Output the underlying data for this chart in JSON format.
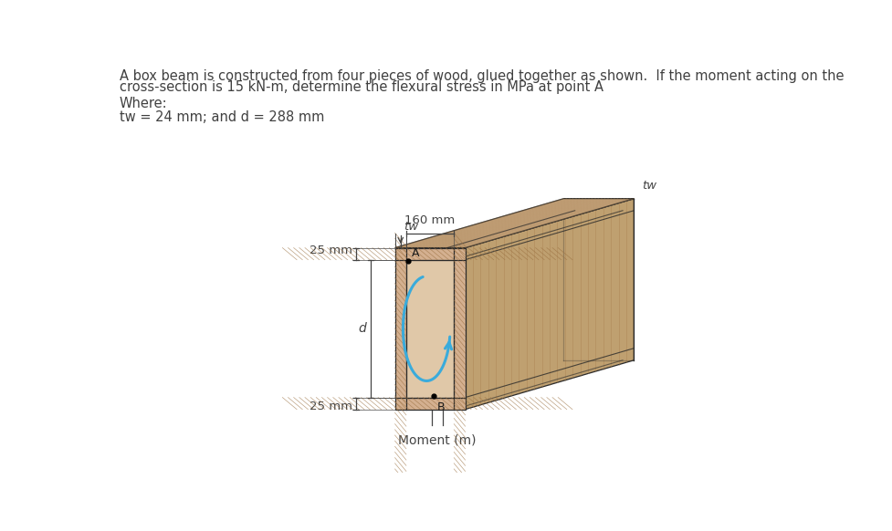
{
  "title_line1": "A box beam is constructed from four pieces of wood, glued together as shown.  If the moment acting on the",
  "title_line2": "cross-section is 15 kN-m, determine the flexural stress in MPa at point A",
  "where_label": "Where:",
  "params_label": "tw = 24 mm; and d = 288 mm",
  "dim_160": "160 mm",
  "dim_25_top": "25 mm",
  "dim_25_bot": "25 mm",
  "dim_d": "d",
  "dim_tw_left": "tw",
  "dim_tw_right": "tw",
  "label_A": "A",
  "label_B": "B",
  "moment_label": "Moment (m)",
  "wood_top_face": "#C8A882",
  "wood_front_face": "#D4B090",
  "wood_right_face": "#BFA070",
  "wood_interior": "#E0C8A8",
  "wood_grain_color": "#A88050",
  "line_color": "#2A2A2A",
  "text_color": "#404040",
  "dim_color": "#444444",
  "blue_arrow_color": "#3AABDB",
  "bg_color": "#FFFFFF"
}
